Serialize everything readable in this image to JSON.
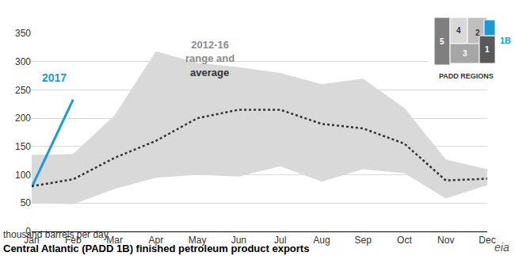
{
  "chart_data": {
    "type": "line",
    "title": "Central Atlantic (PADD 1B) finished petroleum product exports",
    "subtitle": "thousand barrels per day",
    "categories": [
      "Jan",
      "Feb",
      "Mar",
      "Apr",
      "May",
      "Jun",
      "Jul",
      "Aug",
      "Sep",
      "Oct",
      "Nov",
      "Dec"
    ],
    "series": [
      {
        "name": "2017",
        "color": "#1a9bd7",
        "line_style": "solid",
        "values": [
          78,
          233,
          null,
          null,
          null,
          null,
          null,
          null,
          null,
          null,
          null,
          null
        ]
      },
      {
        "name": "average",
        "color": "#333333",
        "line_style": "dot",
        "values": [
          80,
          92,
          130,
          160,
          200,
          215,
          215,
          190,
          182,
          155,
          90,
          93
        ]
      }
    ],
    "range": {
      "name": "2012-16 range and",
      "color": "#d9d9d9",
      "low": [
        50,
        48,
        75,
        95,
        100,
        97,
        115,
        88,
        110,
        103,
        58,
        82
      ],
      "high": [
        135,
        137,
        205,
        318,
        298,
        290,
        280,
        260,
        270,
        218,
        127,
        110
      ]
    },
    "ylim": [
      0,
      350
    ],
    "yticks": [
      0,
      50,
      100,
      150,
      200,
      250,
      300,
      350
    ],
    "grid": true,
    "map": {
      "title": "PADD REGIONS",
      "regions": [
        {
          "label": "5",
          "color": "#7f7f7f"
        },
        {
          "label": "4",
          "color": "#d9d9d9"
        },
        {
          "label": "2",
          "color": "#bfbfbf"
        },
        {
          "label": "3",
          "color": "#a6a6a6"
        },
        {
          "label": "1",
          "color": "#595959"
        },
        {
          "label": "1B",
          "color": "#1a9bd7"
        }
      ]
    },
    "logo": "eia"
  }
}
